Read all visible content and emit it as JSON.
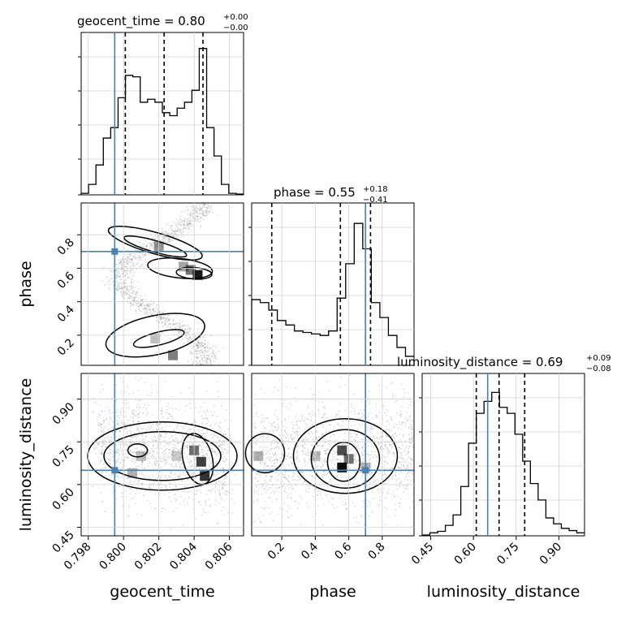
{
  "chart_data": {
    "type": "corner",
    "parameters": [
      "geocent_time",
      "phase",
      "luminosity_distance"
    ],
    "truth": {
      "geocent_time": 0.7995,
      "phase": 0.7,
      "luminosity_distance": 0.65
    },
    "titles": [
      {
        "name": "geocent_time = 0.80",
        "plus": "+0.00",
        "minus": "−0.00"
      },
      {
        "name": "phase = 0.55",
        "plus": "+0.18",
        "minus": "−0.41"
      },
      {
        "name": "luminosity_distance = 0.69",
        "plus": "+0.09",
        "minus": "−0.08"
      }
    ],
    "ticks": {
      "geocent_time": [
        "0.798",
        "0.800",
        "0.802",
        "0.804",
        "0.806"
      ],
      "phase": [
        "0.2",
        "0.4",
        "0.6",
        "0.8"
      ],
      "luminosity_distance": [
        "0.45",
        "0.60",
        "0.75",
        "0.90"
      ]
    },
    "quantiles": {
      "geocent_time": [
        0.8001,
        0.8023,
        0.8045
      ],
      "phase": [
        0.14,
        0.55,
        0.73
      ],
      "luminosity_distance": [
        0.61,
        0.69,
        0.78
      ]
    },
    "histograms": {
      "geocent_time": {
        "range": [
          0.7976,
          0.8068
        ],
        "values": [
          0.01,
          0.07,
          0.2,
          0.38,
          0.45,
          0.65,
          0.8,
          0.79,
          0.62,
          0.64,
          0.62,
          0.55,
          0.53,
          0.58,
          0.62,
          0.7,
          0.98,
          0.45,
          0.26,
          0.07,
          0.01,
          0.005
        ]
      },
      "phase": {
        "range": [
          0.02,
          0.99
        ],
        "values": [
          0.44,
          0.42,
          0.37,
          0.3,
          0.27,
          0.23,
          0.22,
          0.21,
          0.2,
          0.23,
          0.45,
          0.68,
          0.95,
          0.78,
          0.42,
          0.32,
          0.2,
          0.12,
          0.06
        ]
      },
      "luminosity_distance": {
        "range": [
          0.42,
          0.99
        ],
        "values": [
          0.005,
          0.02,
          0.03,
          0.07,
          0.14,
          0.33,
          0.62,
          0.82,
          0.9,
          0.96,
          0.86,
          0.82,
          0.68,
          0.5,
          0.35,
          0.24,
          0.12,
          0.08,
          0.05,
          0.035,
          0.02
        ]
      }
    },
    "grid": true
  }
}
